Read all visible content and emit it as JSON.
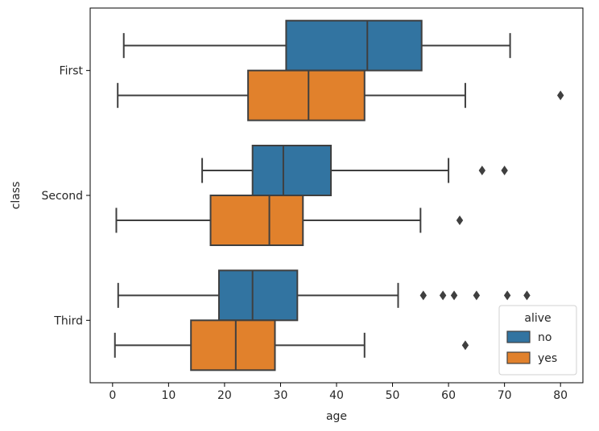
{
  "chart_data": {
    "type": "box",
    "orientation": "horizontal",
    "xlabel": "age",
    "ylabel": "class",
    "xlim": [
      -4,
      84
    ],
    "xticks": [
      0,
      10,
      20,
      30,
      40,
      50,
      60,
      70,
      80
    ],
    "categories": [
      "First",
      "Second",
      "Third"
    ],
    "legend": {
      "title": "alive",
      "placement": "lower-right"
    },
    "series": [
      {
        "name": "no",
        "color": "#3274a1",
        "boxes": [
          {
            "category": "First",
            "whisker_low": 2,
            "q1": 31,
            "median": 45.5,
            "q3": 55.2,
            "whisker_high": 71,
            "outliers": []
          },
          {
            "category": "Second",
            "whisker_low": 16,
            "q1": 25,
            "median": 30.5,
            "q3": 39,
            "whisker_high": 60,
            "outliers": [
              66,
              70
            ]
          },
          {
            "category": "Third",
            "whisker_low": 1,
            "q1": 19,
            "median": 25,
            "q3": 33,
            "whisker_high": 51,
            "outliers": [
              55.5,
              59,
              61,
              65,
              70.5,
              74
            ]
          }
        ]
      },
      {
        "name": "yes",
        "color": "#e1812c",
        "boxes": [
          {
            "category": "First",
            "whisker_low": 0.92,
            "q1": 24.2,
            "median": 35,
            "q3": 45,
            "whisker_high": 63,
            "outliers": [
              80
            ]
          },
          {
            "category": "Second",
            "whisker_low": 0.67,
            "q1": 17.5,
            "median": 28,
            "q3": 34,
            "whisker_high": 55,
            "outliers": [
              62
            ]
          },
          {
            "category": "Third",
            "whisker_low": 0.42,
            "q1": 14,
            "median": 22,
            "q3": 29,
            "whisker_high": 45,
            "outliers": [
              63
            ]
          }
        ]
      }
    ]
  }
}
